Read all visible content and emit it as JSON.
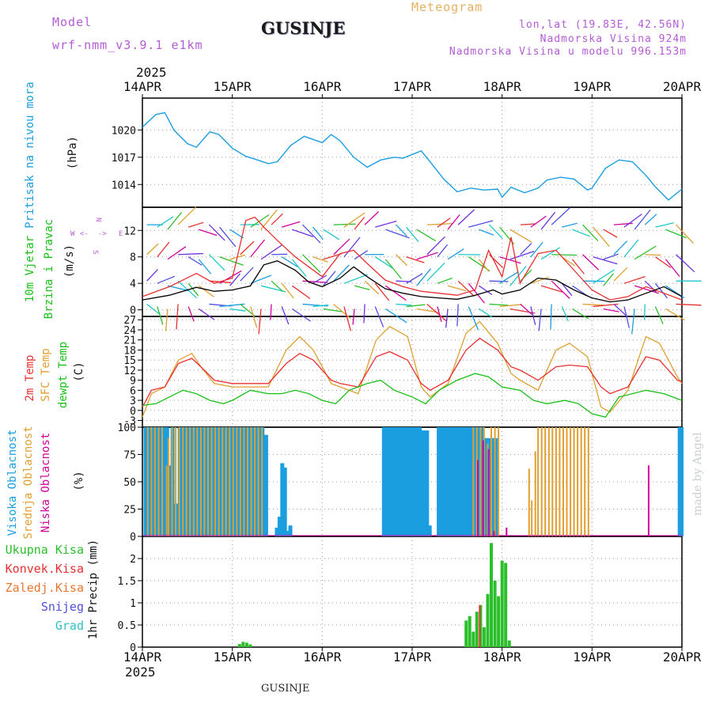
{
  "header": {
    "model_label": "Model",
    "model_value": "wrf-nmm_v3.9.1 e1km",
    "title": "GUSINJE",
    "meteogram": "Meteogram",
    "lonlat": "lon,lat (19.83E, 42.56N)",
    "altitude": "Nadmorska Visina 924m",
    "model_altitude": "Nadmorska Visina u modelu 996.153m",
    "year_top": "2025",
    "year_bottom": "2025",
    "footer": "GUSINJE",
    "watermark": "made by Angel"
  },
  "colors": {
    "pressure": "#1a9ee0",
    "wind_speed": "#000000",
    "gust": "#e83030",
    "temp2m": "#e83030",
    "sfc_temp": "#e0a030",
    "dewpt": "#18c018",
    "high_cloud": "#1a9ee0",
    "mid_cloud": "#e0a030",
    "low_cloud": "#d0009a",
    "total_precip": "#2cbf2c",
    "conv_precip": "#e83030",
    "frozen_precip": "#e87830",
    "snow": "#5050e0",
    "graupel": "#30c0c0",
    "title": "#5050e0",
    "violet": "#b45cd6"
  },
  "x_axis": {
    "tick_labels": [
      "14APR",
      "15APR",
      "16APR",
      "17APR",
      "18APR",
      "19APR",
      "20APR"
    ],
    "days": [
      0,
      1,
      2,
      3,
      4,
      5,
      6
    ]
  },
  "chart_data": [
    {
      "type": "line",
      "panel": "pressure",
      "ylabel": [
        "Pritisak na nivou mora",
        "(hPa)"
      ],
      "yticks": [
        1014,
        1017,
        1020
      ],
      "ylim": [
        1011.5,
        1023.5
      ],
      "series": [
        {
          "x": [
            0,
            0.15,
            0.25,
            0.35,
            0.5,
            0.6,
            0.75,
            0.85,
            1.0,
            1.15,
            1.25,
            1.4,
            1.5,
            1.65,
            1.8,
            2.0,
            2.1,
            2.2,
            2.35,
            2.5,
            2.65,
            2.8,
            2.9,
            3.1,
            3.2,
            3.35,
            3.5,
            3.65,
            3.8,
            3.95,
            4.0,
            4.1,
            4.25,
            4.4,
            4.5,
            4.65,
            4.8,
            4.95,
            5.0,
            5.15,
            5.3,
            5.45,
            5.6,
            5.7,
            5.85,
            6.0
          ],
          "y": [
            1020.3,
            1021.7,
            1021.9,
            1020,
            1018.5,
            1018.1,
            1019.8,
            1019.5,
            1018,
            1017.1,
            1016.8,
            1016.3,
            1016.5,
            1018.3,
            1019.3,
            1018.6,
            1019.5,
            1018.8,
            1017,
            1015.9,
            1016.7,
            1017,
            1016.9,
            1017.7,
            1016.5,
            1014.6,
            1013.2,
            1013.6,
            1013.4,
            1013.5,
            1012.6,
            1013.7,
            1013.1,
            1013.6,
            1014.5,
            1014.8,
            1014.6,
            1013.4,
            1013.6,
            1015.8,
            1016.7,
            1016.5,
            1015,
            1013.8,
            1012.3,
            1013.5
          ]
        }
      ]
    },
    {
      "type": "line",
      "panel": "wind",
      "ylabel": [
        "10m Vjetar",
        "Brzina i Pravac",
        "(m/s)"
      ],
      "compass": [
        "N",
        "W",
        "<-",
        "->",
        "E",
        "S"
      ],
      "yticks": [
        0,
        4,
        8,
        12
      ],
      "ylim": [
        -1,
        15.5
      ],
      "series": [
        {
          "name": "speed",
          "x": [
            0,
            0.3,
            0.6,
            0.8,
            1.0,
            1.2,
            1.35,
            1.5,
            1.7,
            1.85,
            2.0,
            2.2,
            2.35,
            2.5,
            2.7,
            2.9,
            3.1,
            3.3,
            3.5,
            3.7,
            3.9,
            4.0,
            4.2,
            4.4,
            4.6,
            4.8,
            5.0,
            5.2,
            5.4,
            5.6,
            5.8,
            6.0
          ],
          "y": [
            1.5,
            2.2,
            3.4,
            2.8,
            3.0,
            3.6,
            6.8,
            7.4,
            6.0,
            4.2,
            3.5,
            4.8,
            6.5,
            5.0,
            3.2,
            2.5,
            2.0,
            1.8,
            1.6,
            2.2,
            3.0,
            2.4,
            3.0,
            4.8,
            4.5,
            3.0,
            1.8,
            1.2,
            1.5,
            2.5,
            3.5,
            2.0
          ]
        },
        {
          "name": "gust",
          "x": [
            0,
            0.3,
            0.6,
            0.8,
            1.0,
            1.15,
            1.25,
            1.35,
            1.5,
            1.7,
            1.85,
            2.0,
            2.2,
            2.35,
            2.5,
            2.7,
            2.9,
            3.1,
            3.3,
            3.5,
            3.7,
            3.85,
            4.0,
            4.1,
            4.2,
            4.4,
            4.6,
            4.8,
            5.0,
            5.2,
            5.4,
            5.6,
            5.8,
            6.0
          ],
          "y": [
            2.0,
            3.5,
            5.5,
            4.0,
            4.8,
            13.5,
            14.0,
            12.5,
            10.5,
            8.0,
            6.5,
            5.0,
            8.5,
            9.0,
            7.0,
            4.5,
            3.5,
            2.8,
            2.5,
            2.2,
            3.0,
            9.0,
            5.0,
            11.0,
            4.0,
            8.5,
            9.0,
            6.0,
            3.0,
            1.5,
            2.0,
            3.5,
            2.5,
            1.5
          ]
        }
      ]
    },
    {
      "type": "line",
      "panel": "temperature",
      "ylabel": [
        "2m Temp",
        "SFC Temp",
        "dewpt Temp",
        "(C)"
      ],
      "yticks": [
        -3,
        0,
        3,
        6,
        9,
        12,
        15,
        18,
        21,
        24,
        27
      ],
      "ylim": [
        -5,
        28
      ],
      "series": [
        {
          "name": "2m",
          "x": [
            0,
            0.1,
            0.25,
            0.4,
            0.55,
            0.65,
            0.8,
            1.0,
            1.2,
            1.4,
            1.6,
            1.75,
            1.9,
            2.1,
            2.2,
            2.4,
            2.6,
            2.75,
            2.95,
            3.1,
            3.2,
            3.4,
            3.6,
            3.75,
            3.95,
            4.1,
            4.2,
            4.4,
            4.6,
            4.75,
            4.95,
            5.1,
            5.2,
            5.4,
            5.6,
            5.75,
            5.95,
            6.0
          ],
          "y": [
            1,
            6,
            7,
            14,
            15.5,
            13,
            9,
            8,
            8,
            8,
            14,
            17,
            15,
            9,
            8,
            7,
            16,
            17.5,
            15,
            8,
            6,
            9,
            18,
            21.5,
            18,
            13,
            12,
            9,
            13,
            13.5,
            13,
            7,
            5,
            7,
            16,
            15,
            9,
            8.5
          ]
        },
        {
          "name": "sfc",
          "x": [
            0,
            0.1,
            0.25,
            0.4,
            0.55,
            0.65,
            0.8,
            1.0,
            1.2,
            1.4,
            1.6,
            1.75,
            1.9,
            2.1,
            2.2,
            2.4,
            2.6,
            2.75,
            2.95,
            3.1,
            3.2,
            3.4,
            3.6,
            3.75,
            3.95,
            4.1,
            4.2,
            4.4,
            4.6,
            4.75,
            4.95,
            5.1,
            5.2,
            5.4,
            5.6,
            5.75,
            5.95,
            6.0
          ],
          "y": [
            -2,
            5,
            7,
            15,
            17,
            13,
            8,
            7,
            7,
            7,
            18,
            22,
            18,
            8,
            7,
            5,
            21,
            25,
            22,
            7,
            4,
            8,
            23,
            26.5,
            20,
            11,
            9,
            6,
            18,
            20,
            16,
            1,
            -0.5,
            6,
            22,
            20,
            10,
            8
          ]
        },
        {
          "name": "dew",
          "x": [
            0,
            0.15,
            0.3,
            0.45,
            0.6,
            0.75,
            0.9,
            1.0,
            1.2,
            1.4,
            1.55,
            1.7,
            1.85,
            2.0,
            2.15,
            2.3,
            2.5,
            2.65,
            2.8,
            3.0,
            3.15,
            3.3,
            3.5,
            3.7,
            3.85,
            4.0,
            4.2,
            4.35,
            4.5,
            4.7,
            4.85,
            5.0,
            5.15,
            5.3,
            5.45,
            5.6,
            5.8,
            6.0
          ],
          "y": [
            1.5,
            2,
            4,
            6,
            5,
            3,
            2,
            3,
            6,
            5,
            5,
            6,
            5,
            3,
            2,
            6,
            8,
            9,
            6,
            4,
            2,
            6,
            9,
            11,
            10,
            7,
            6,
            3,
            2,
            3,
            2,
            -1,
            -2,
            4,
            5,
            6,
            5,
            3
          ]
        }
      ]
    },
    {
      "type": "bar",
      "panel": "cloud",
      "ylabel": [
        "Visoka Oblacnost",
        "Srednja Oblacnost",
        "Niska Oblacnost",
        "(%)"
      ],
      "yticks": [
        0,
        25,
        50,
        75,
        100
      ],
      "ylim": [
        0,
        100
      ],
      "series": [
        {
          "name": "high",
          "x": [
            0.04,
            0.08,
            0.12,
            0.16,
            0.2,
            0.24,
            0.28,
            0.3,
            0.34,
            0.38,
            0.42,
            0.46,
            0.5,
            0.54,
            0.58,
            0.62,
            0.66,
            0.7,
            0.74,
            0.78,
            0.82,
            0.86,
            0.9,
            0.94,
            0.98,
            1.02,
            1.06,
            1.1,
            1.14,
            1.18,
            1.22,
            1.26,
            1.3,
            1.34,
            1.38,
            1.5,
            1.53,
            1.56,
            1.59,
            1.62,
            1.65,
            1.7,
            2.69,
            2.73,
            2.77,
            2.81,
            2.85,
            2.89,
            2.93,
            2.97,
            3.01,
            3.05,
            3.09,
            3.13,
            3.17,
            3.2,
            3.3,
            3.34,
            3.38,
            3.42,
            3.46,
            3.5,
            3.54,
            3.58,
            3.62,
            3.66,
            3.7,
            3.74,
            3.78,
            3.82,
            3.86,
            3.9,
            3.94,
            5.98,
            6.0
          ],
          "y": [
            100,
            100,
            100,
            100,
            100,
            100,
            100,
            65,
            100,
            30,
            100,
            100,
            100,
            100,
            100,
            100,
            100,
            100,
            100,
            100,
            100,
            100,
            100,
            100,
            100,
            100,
            100,
            100,
            100,
            100,
            100,
            100,
            100,
            100,
            93,
            8,
            18,
            67,
            63,
            5,
            10,
            0,
            100,
            100,
            100,
            100,
            100,
            100,
            100,
            100,
            100,
            100,
            100,
            97,
            97,
            10,
            100,
            100,
            100,
            100,
            100,
            100,
            100,
            100,
            100,
            100,
            100,
            100,
            100,
            90,
            90,
            90,
            90,
            100,
            100
          ]
        },
        {
          "name": "mid",
          "x": [
            0.06,
            0.1,
            0.14,
            0.18,
            0.22,
            0.27,
            0.29,
            0.33,
            0.37,
            0.41,
            0.45,
            0.49,
            0.53,
            0.57,
            0.61,
            0.65,
            0.69,
            0.73,
            0.77,
            0.81,
            0.85,
            0.89,
            0.93,
            0.97,
            1.01,
            1.05,
            1.09,
            1.13,
            1.17,
            1.21,
            1.25,
            1.29,
            1.33,
            3.68,
            3.72,
            3.76,
            3.8,
            3.84,
            3.88,
            3.92,
            3.96,
            4.3,
            4.33,
            4.37,
            4.4,
            4.44,
            4.48,
            4.52,
            4.56,
            4.6,
            4.64,
            4.68,
            4.72,
            4.76,
            4.8,
            4.84,
            4.88,
            4.92,
            4.96
          ],
          "y": [
            100,
            100,
            100,
            100,
            100,
            65,
            90,
            100,
            100,
            100,
            100,
            100,
            100,
            100,
            100,
            100,
            100,
            100,
            100,
            100,
            100,
            100,
            100,
            100,
            100,
            100,
            100,
            100,
            100,
            100,
            100,
            100,
            100,
            100,
            100,
            100,
            100,
            85,
            100,
            100,
            100,
            62,
            33,
            78,
            100,
            100,
            100,
            100,
            100,
            100,
            100,
            100,
            100,
            100,
            100,
            100,
            100,
            100,
            100
          ]
        },
        {
          "name": "low",
          "x": [
            3.73,
            3.79,
            3.85,
            3.91,
            4.05,
            5.63
          ],
          "y": [
            70,
            88,
            80,
            5,
            8,
            65
          ]
        }
      ]
    },
    {
      "type": "bar",
      "panel": "precip",
      "ylabel": [
        "1hr Precip",
        "(mm)"
      ],
      "legend": [
        "Ukupna Kisa",
        "Konvek.Kisa",
        "Zaledj.Kisa",
        "Snijeg",
        "Grad"
      ],
      "yticks": [
        0,
        0.5,
        1,
        1.5,
        2
      ],
      "ylim": [
        0,
        2.5
      ],
      "series": [
        {
          "name": "total",
          "x": [
            1.08,
            1.12,
            1.16,
            1.2,
            3.6,
            3.64,
            3.68,
            3.72,
            3.76,
            3.8,
            3.84,
            3.88,
            3.92,
            3.96,
            4.0,
            4.04,
            4.08
          ],
          "y": [
            0.07,
            0.12,
            0.1,
            0.06,
            0.6,
            0.7,
            0.35,
            0.8,
            0.95,
            0.45,
            1.2,
            2.35,
            1.5,
            1.15,
            1.95,
            1.9,
            0.15
          ]
        },
        {
          "name": "conv",
          "x": [
            3.76
          ],
          "y": [
            0.95
          ]
        }
      ]
    }
  ]
}
